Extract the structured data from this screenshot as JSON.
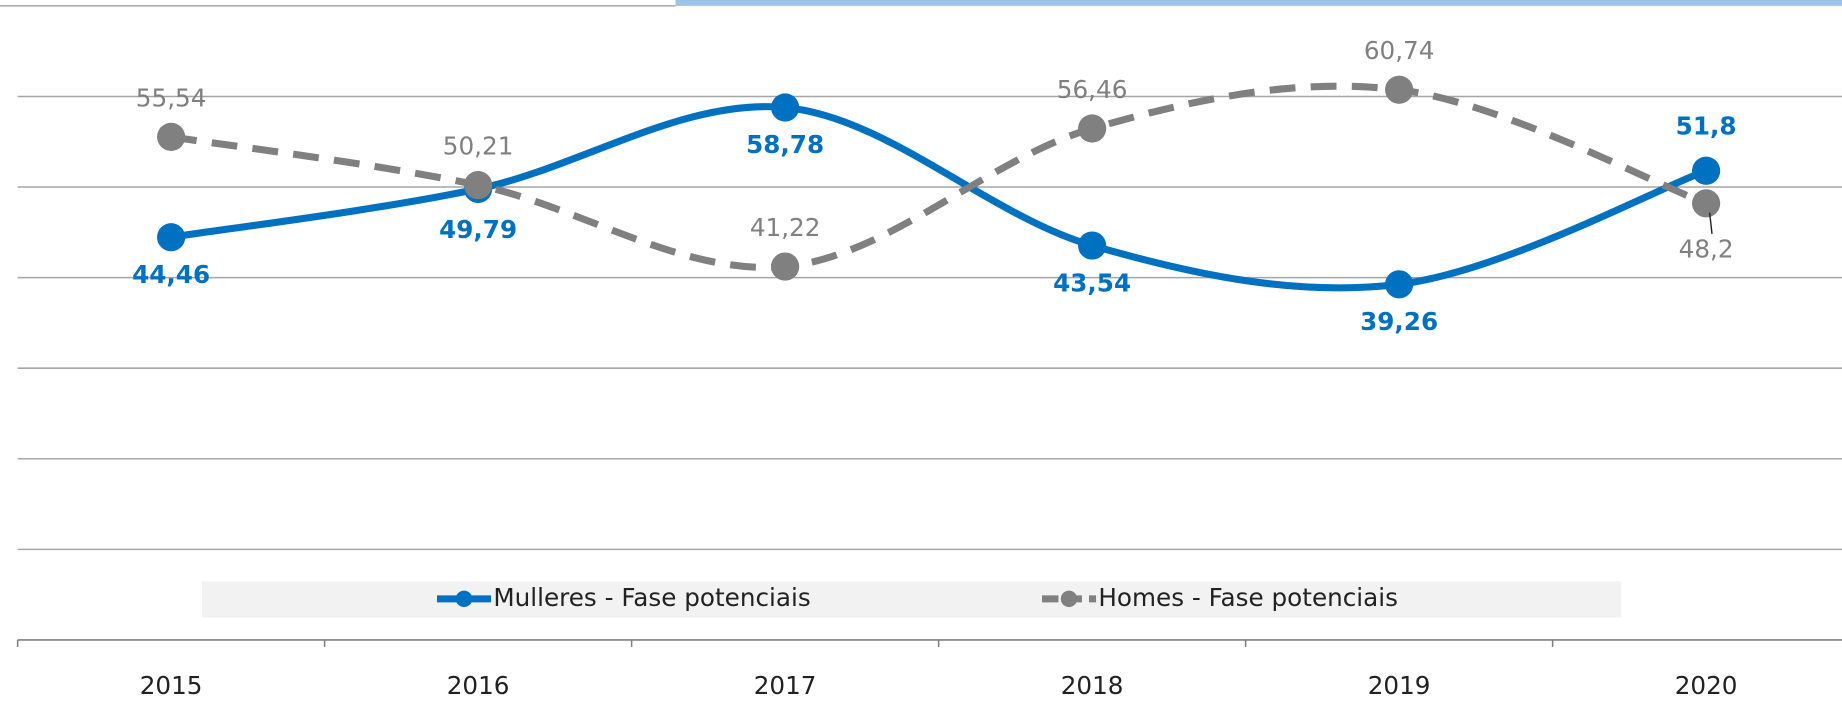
{
  "chart_data": {
    "type": "line",
    "categories": [
      "2015",
      "2016",
      "2017",
      "2018",
      "2019",
      "2020"
    ],
    "series": [
      {
        "name": "Mulleres - Fase potenciais",
        "color": "#0070c0",
        "dash": false,
        "values": [
          44.46,
          49.79,
          58.78,
          43.54,
          39.26,
          51.8
        ],
        "value_labels": [
          "44,46",
          "49,79",
          "58,78",
          "43,54",
          "39,26",
          "51,8"
        ]
      },
      {
        "name": "Homes - Fase potenciais",
        "color": "#808080",
        "dash": true,
        "values": [
          55.54,
          50.21,
          41.22,
          56.46,
          60.74,
          48.2
        ],
        "value_labels": [
          "55,54",
          "50,21",
          "41,22",
          "56,46",
          "60,74",
          "48,2"
        ]
      }
    ],
    "ylim": [
      0,
      70
    ],
    "yticks": [
      10,
      20,
      30,
      40,
      50,
      60,
      70
    ],
    "grid": true,
    "legend": "bottom"
  }
}
